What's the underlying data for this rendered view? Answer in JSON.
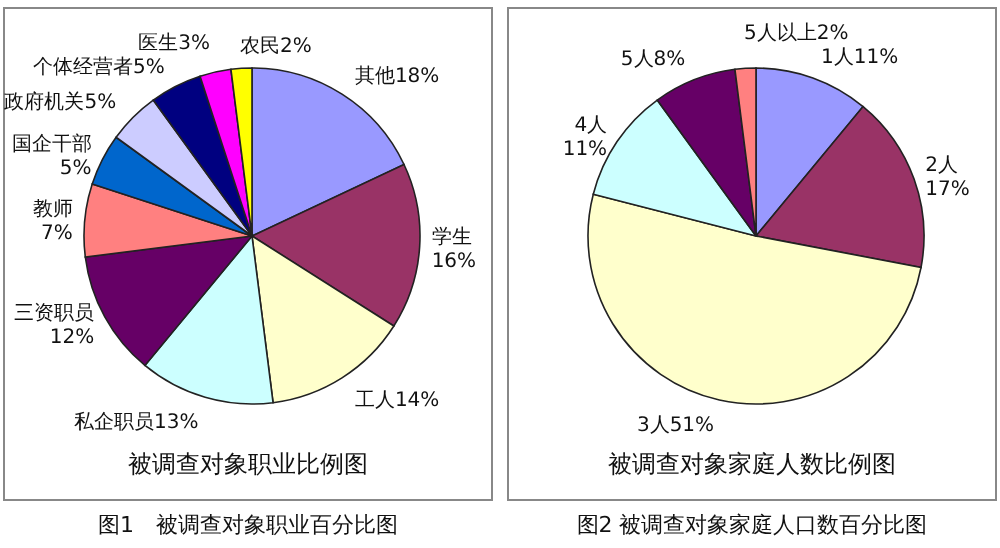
{
  "chart_data": [
    {
      "type": "pie",
      "title": "图1　被调查对象职业百分比图",
      "subtitle": "被调查对象职业比例图",
      "categories": [
        "其他",
        "学生",
        "工人",
        "私企职员",
        "三资职员",
        "教师",
        "国企干部",
        "政府机关",
        "个体经营者",
        "医生",
        "农民"
      ],
      "values": [
        18,
        16,
        14,
        13,
        12,
        7,
        5,
        5,
        5,
        3,
        2
      ],
      "value_labels": [
        "18%",
        "16%",
        "14%",
        "13%",
        "12%",
        "7%",
        "5%",
        "5%",
        "5%",
        "3%",
        "2%"
      ],
      "colors": [
        "#9999ff",
        "#993366",
        "#ffffcc",
        "#ccffff",
        "#660066",
        "#ff8080",
        "#0066cc",
        "#ccccff",
        "#000080",
        "#ff00ff",
        "#ffff00"
      ]
    },
    {
      "type": "pie",
      "title": "图2 被调查对象家庭人口数百分比图",
      "subtitle": "被调查对象家庭人数比例图",
      "categories": [
        "1人",
        "2人",
        "3人",
        "4人",
        "5人",
        "5人以上"
      ],
      "values": [
        11,
        17,
        51,
        11,
        8,
        2
      ],
      "value_labels": [
        "11%",
        "17%",
        "51%",
        "11%",
        "8%",
        "2%"
      ],
      "colors": [
        "#9999ff",
        "#993366",
        "#ffffcc",
        "#ccffff",
        "#660066",
        "#ff8080"
      ]
    }
  ]
}
